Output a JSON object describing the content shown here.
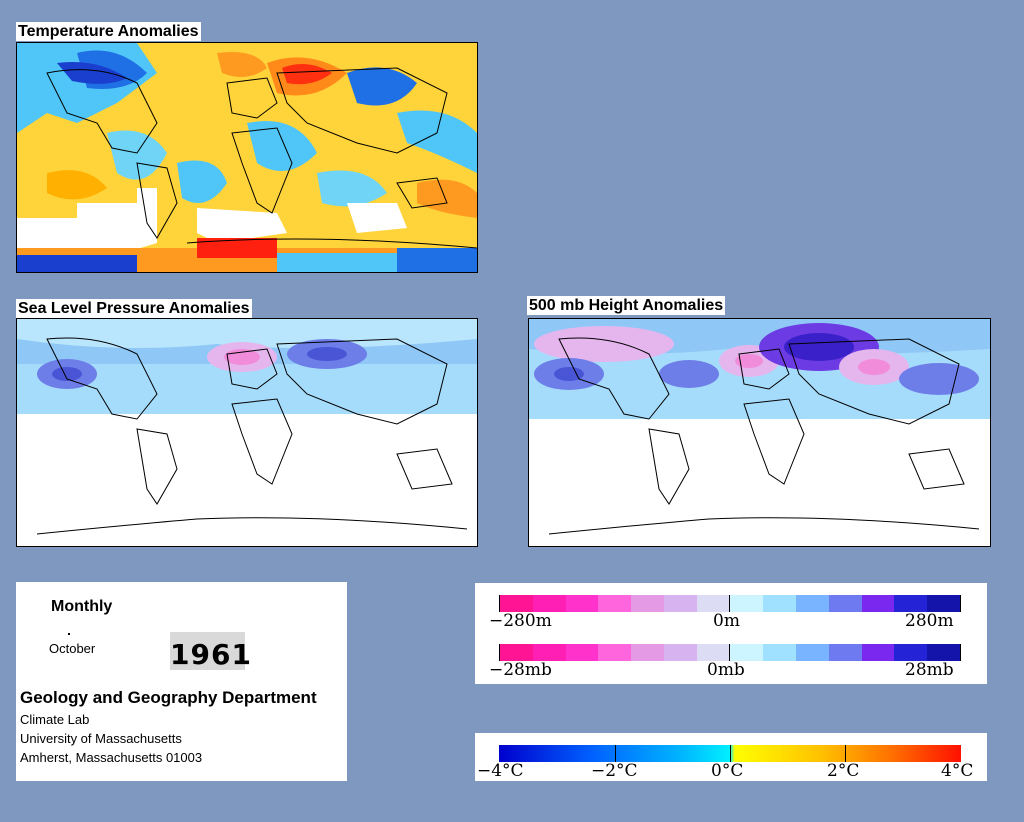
{
  "temperature": {
    "title": "Temperature Anomalies"
  },
  "slp": {
    "title": "Sea Level Pressure Anomalies"
  },
  "height": {
    "title": "500 mb Height Anomalies"
  },
  "info": {
    "period": "Monthly",
    "month": "October",
    "year": "1961",
    "department": "Geology and Geography Department",
    "lab": "Climate Lab",
    "university": "University of Massachusetts",
    "address": "Amherst, Massachusetts 01003"
  },
  "legend_height": {
    "min": "−280m",
    "mid": "0m",
    "max": "280m"
  },
  "legend_pressure": {
    "min": "−28mb",
    "mid": "0mb",
    "max": "28mb"
  },
  "legend_temp": {
    "t0": "−4°C",
    "t1": "−2°C",
    "t2": "0°C",
    "t3": "2°C",
    "t4": "4°C"
  },
  "colors": {
    "anomaly_scale": [
      "#ff1493",
      "#ff1fb4",
      "#ff33cc",
      "#ff66dd",
      "#e59ae6",
      "#d7b3ef",
      "#dcdcf5",
      "#ccf5ff",
      "#a0e1ff",
      "#78b4ff",
      "#6e7bf0",
      "#7a28ef",
      "#2424d6",
      "#1414aa"
    ],
    "temp_scale": [
      "#0000dd",
      "#0060ff",
      "#00b0ff",
      "#00e8ff",
      "#ffff00",
      "#ffc000",
      "#ff8000",
      "#ff2000"
    ]
  }
}
